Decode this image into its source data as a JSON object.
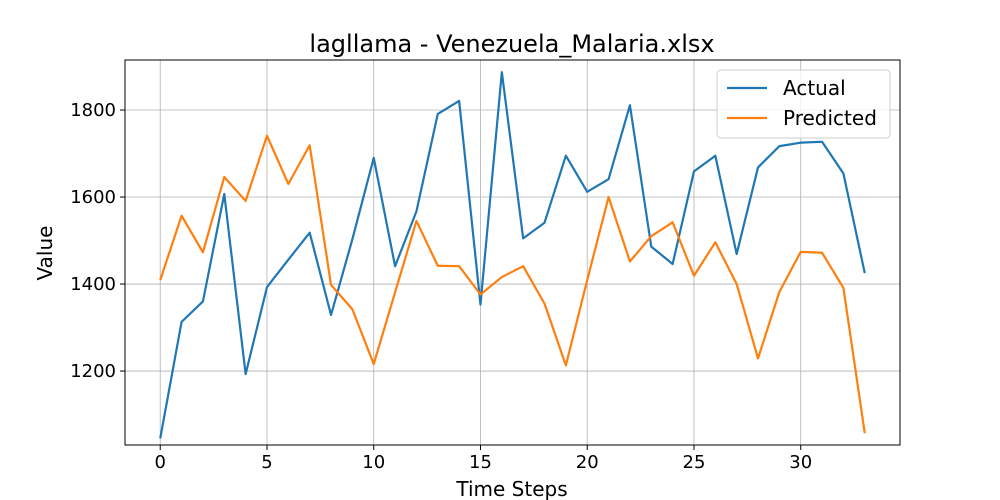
{
  "chart_data": {
    "type": "line",
    "title": "lagllama - Venezuela_Malaria.xlsx",
    "xlabel": "Time Steps",
    "ylabel": "Value",
    "xlim": [
      -1.65,
      34.65
    ],
    "ylim": [
      1030,
      1915
    ],
    "xticks": [
      0,
      5,
      10,
      15,
      20,
      25,
      30
    ],
    "yticks": [
      1200,
      1400,
      1600,
      1800
    ],
    "grid": true,
    "legend_position": "top-right",
    "x": [
      0,
      1,
      2,
      3,
      4,
      5,
      6,
      7,
      8,
      9,
      10,
      11,
      12,
      13,
      14,
      15,
      16,
      17,
      18,
      19,
      20,
      21,
      22,
      23,
      24,
      25,
      26,
      27,
      28,
      29,
      30,
      31,
      32,
      33
    ],
    "series": [
      {
        "name": "Actual",
        "color": "#1f77b4",
        "values": [
          1045,
          1313,
          1360,
          1607,
          1193,
          1393,
          1456,
          1518,
          1329,
          1503,
          1690,
          1441,
          1567,
          1791,
          1821,
          1353,
          1887,
          1505,
          1541,
          1695,
          1612,
          1641,
          1811,
          1486,
          1446,
          1659,
          1695,
          1469,
          1668,
          1717,
          1725,
          1727,
          1654,
          1425
        ]
      },
      {
        "name": "Predicted",
        "color": "#ff7f0e",
        "values": [
          1409,
          1557,
          1473,
          1646,
          1591,
          1741,
          1630,
          1719,
          1398,
          1342,
          1216,
          1381,
          1545,
          1442,
          1441,
          1376,
          1416,
          1441,
          1355,
          1213,
          1409,
          1600,
          1452,
          1510,
          1542,
          1419,
          1496,
          1400,
          1229,
          1382,
          1474,
          1472,
          1391,
          1057
        ]
      }
    ]
  }
}
